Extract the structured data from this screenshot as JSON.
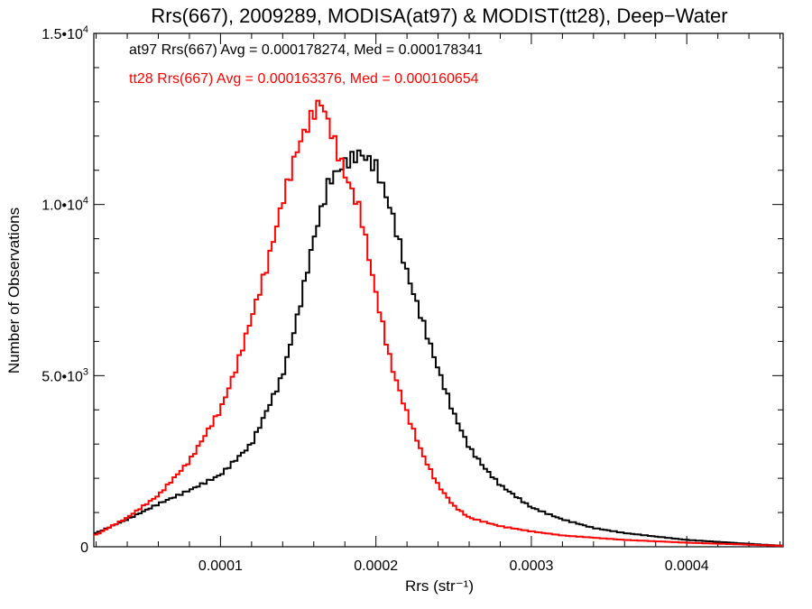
{
  "chart_data": {
    "type": "line",
    "title": "Rrs(667), 2009289, MODISA(at97) & MODIST(tt28), Deep−Water",
    "xlabel": "Rrs (str⁻¹)",
    "ylabel": "Number of Observations",
    "xlim": [
      1.85e-05,
      0.000462
    ],
    "ylim": [
      0,
      15000
    ],
    "x_ticks": [
      {
        "value": 0.0001,
        "label": "0.0001"
      },
      {
        "value": 0.0002,
        "label": "0.0002"
      },
      {
        "value": 0.0003,
        "label": "0.0003"
      },
      {
        "value": 0.0004,
        "label": "0.0004"
      }
    ],
    "y_ticks": [
      {
        "value": 0,
        "label": "0",
        "exp": ""
      },
      {
        "value": 5000,
        "label": "5.0•10",
        "exp": "3"
      },
      {
        "value": 10000,
        "label": "1.0•10",
        "exp": "4"
      },
      {
        "value": 15000,
        "label": "1.5•10",
        "exp": "4"
      }
    ],
    "annotations": [
      {
        "text": "at97 Rrs(667) Avg = 0.000178274, Med = 0.000178341",
        "color": "#000000"
      },
      {
        "text": "tt28 Rrs(667) Avg = 0.000163376, Med = 0.000160654",
        "color": "#ff0000"
      }
    ],
    "series": [
      {
        "name": "at97",
        "color": "#000000",
        "x": [
          2e-05,
          4e-05,
          6e-05,
          8e-05,
          0.0001,
          0.00012,
          0.00014,
          0.00015,
          0.00016,
          0.00017,
          0.00018,
          0.00019,
          0.0002,
          0.00021,
          0.00022,
          0.00023,
          0.00024,
          0.00025,
          0.00026,
          0.00027,
          0.00028,
          0.0003,
          0.00032,
          0.00034,
          0.00036,
          0.0004,
          0.00046
        ],
        "values": [
          400,
          800,
          1250,
          1650,
          2100,
          3000,
          5000,
          6800,
          9000,
          10700,
          11200,
          11500,
          11100,
          9800,
          8000,
          6600,
          5200,
          3900,
          2900,
          2300,
          1800,
          1150,
          800,
          550,
          400,
          200,
          30
        ]
      },
      {
        "name": "tt28",
        "color": "#ff0000",
        "x": [
          2e-05,
          4e-05,
          6e-05,
          8e-05,
          0.0001,
          0.00011,
          0.00012,
          0.00013,
          0.00014,
          0.00015,
          0.00016,
          0.000165,
          0.00017,
          0.00018,
          0.00019,
          0.0002,
          0.00021,
          0.00022,
          0.00023,
          0.00024,
          0.00025,
          0.00026,
          0.00028,
          0.0003,
          0.00032,
          0.00036,
          0.0004,
          0.00046
        ],
        "values": [
          350,
          850,
          1500,
          2500,
          4000,
          5200,
          6700,
          8200,
          10100,
          11700,
          12700,
          13000,
          12300,
          10900,
          9800,
          7400,
          5300,
          3900,
          2700,
          1800,
          1200,
          850,
          600,
          450,
          330,
          200,
          120,
          30
        ]
      }
    ]
  }
}
